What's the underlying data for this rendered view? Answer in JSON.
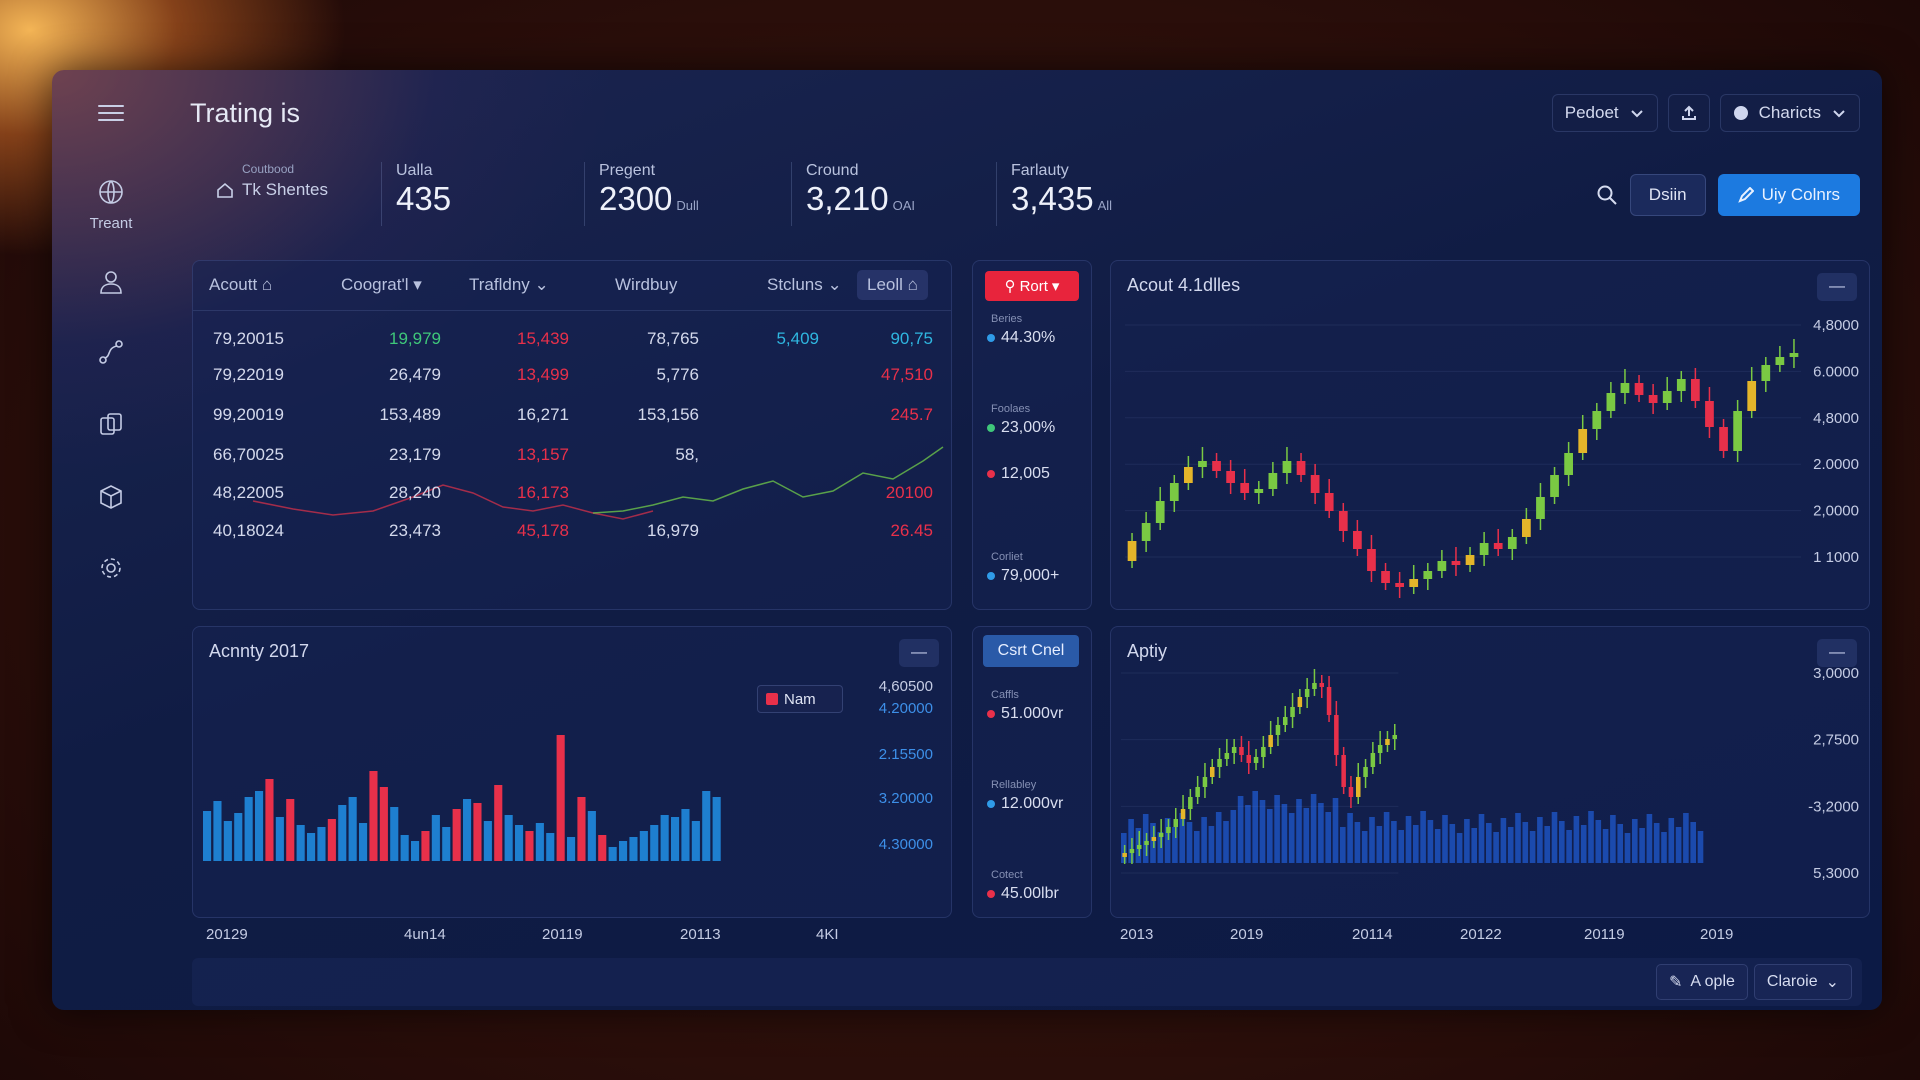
{
  "app": {
    "title": "Trating is"
  },
  "top_controls": {
    "dropdown1": "Pedoet",
    "dropdown2": "Charicts"
  },
  "sidebar": {
    "items": [
      {
        "label": "Treant"
      }
    ]
  },
  "stats": {
    "first": {
      "caption": "Coutbood",
      "label": "Tk Shentes"
    },
    "items": [
      {
        "caption": "Ualla",
        "value": "435",
        "unit": ""
      },
      {
        "caption": "Pregent",
        "value": "2300",
        "unit": "Dull"
      },
      {
        "caption": "Cround",
        "value": "3,210",
        "unit": "OAI"
      },
      {
        "caption": "Farlauty",
        "value": "3,435",
        "unit": "All"
      }
    ]
  },
  "header_actions": {
    "dsiin": "Dsiin",
    "buy": "Uiy Colnrs"
  },
  "table": {
    "headers": [
      "Acoutt",
      "Coograt'l",
      "Trafldny",
      "Wirdbuy",
      "Stcluns",
      "Leoll"
    ],
    "rows": [
      [
        "79,20015",
        "19,979",
        "15,439",
        "78,765",
        "5,409",
        "90,75"
      ],
      [
        "79,22019",
        "26,479",
        "13,499",
        "5,776",
        "",
        "47,510"
      ],
      [
        "99,20019",
        "153,489",
        "16,271",
        "153,156",
        "",
        "245.7"
      ],
      [
        "66,70025",
        "23,179",
        "13,157",
        "58,",
        "",
        ""
      ],
      [
        "48,22005",
        "28,240",
        "16,173",
        "",
        "",
        "20100"
      ],
      [
        "40,18024",
        "23,473",
        "45,178",
        "16,979",
        "",
        "26.45"
      ]
    ]
  },
  "mini1": {
    "button": "Rort",
    "items": [
      {
        "caption": "Beries",
        "value": "44.30%",
        "color": "#2f9be8"
      },
      {
        "caption": "Foolaes",
        "value": "23,00%",
        "color": "#3fc77a"
      },
      {
        "caption": "",
        "value": "12,005",
        "color": "#e8304a"
      },
      {
        "caption": "Corliet",
        "value": "79,000+",
        "color": "#2f9be8"
      }
    ]
  },
  "candle_top": {
    "title": "Acout 4.1dlles",
    "yticks": [
      "4,8000",
      "6.0000",
      "4,8000",
      "2.0000",
      "2,0000",
      "1 1000"
    ]
  },
  "bars_panel": {
    "title": "Acnnty 2017",
    "legend": "Nam",
    "yticks": [
      "4,60500",
      "4.20000",
      "2.15500",
      "3.20000",
      "4.30000"
    ],
    "xlabels": [
      "20129",
      "4un14",
      "20119",
      "20113",
      "4KI"
    ]
  },
  "mini2": {
    "button": "Csrt Cnel",
    "items": [
      {
        "caption": "Caffls",
        "value": "51.000vr",
        "color": "#e8304a"
      },
      {
        "caption": "Rellabley",
        "value": "12.000vr",
        "color": "#2f9be8"
      },
      {
        "caption": "Cotect",
        "value": "45.00lbr",
        "color": "#e8304a"
      }
    ]
  },
  "candle_bottom": {
    "title": "Aptiy",
    "yticks": [
      "3,0000",
      "2,7500",
      "-3,2000",
      "5,3000"
    ],
    "xlabels": [
      "2013",
      "2019",
      "20114",
      "20122",
      "20119",
      "2019"
    ]
  },
  "footer": {
    "btn1": "A ople",
    "btn2": "Claroie"
  },
  "colors": {
    "accent": "#1c7ae0",
    "up": "#7ac943",
    "down": "#e8304a",
    "volume": "#1d4fb8"
  }
}
